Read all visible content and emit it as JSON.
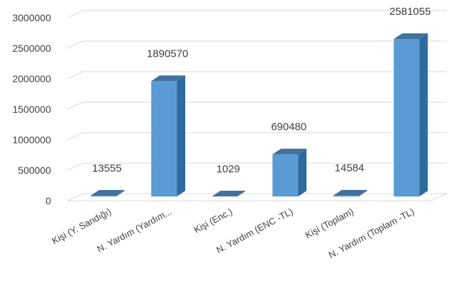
{
  "chart_data": {
    "type": "bar",
    "style": "3d-column",
    "categories": [
      "Kişi (Y. Sandığı)",
      "N. Yardım (Yardım...",
      "Kişi (Enc.)",
      "N. Yardım (ENC -TL)",
      "Kişi (Toplam)",
      "N. Yardım (Toplam -TL)"
    ],
    "values": [
      13555,
      1890570,
      1029,
      690480,
      14584,
      2581055
    ],
    "data_labels": [
      "13555",
      "1890570",
      "1029",
      "690480",
      "14584",
      "2581055"
    ],
    "ylim": [
      0,
      3000000
    ],
    "yticks": [
      0,
      500000,
      1000000,
      1500000,
      2000000,
      2500000,
      3000000
    ],
    "ytick_labels": [
      "0",
      "500000",
      "1000000",
      "1500000",
      "2000000",
      "2500000",
      "3000000"
    ],
    "grid": true,
    "legend": "none",
    "colors": {
      "bar_front": "#5b9bd5",
      "bar_side": "#2e6a9e",
      "bar_top": "#41719c",
      "grid": "#d9d9d9",
      "text": "#404040"
    }
  }
}
